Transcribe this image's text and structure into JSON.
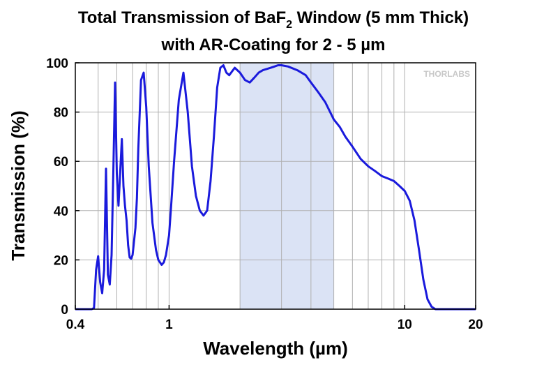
{
  "chart_data": {
    "type": "line",
    "title_line1_prefix": "Total Transmission of BaF",
    "title_line1_subscript": "2",
    "title_line1_suffix": " Window (5 mm Thick)",
    "title_line2": "with AR-Coating for 2 - 5 µm",
    "xlabel": "Wavelength (µm)",
    "ylabel": "Transmission (%)",
    "x_scale": "log",
    "xlim": [
      0.4,
      20
    ],
    "ylim": [
      0,
      100
    ],
    "x_ticks": [
      {
        "value": 0.4,
        "label": "0.4"
      },
      {
        "value": 1,
        "label": "1"
      },
      {
        "value": 10,
        "label": "10"
      },
      {
        "value": 20,
        "label": "20"
      }
    ],
    "y_ticks": [
      {
        "value": 0,
        "label": "0"
      },
      {
        "value": 20,
        "label": "20"
      },
      {
        "value": 40,
        "label": "40"
      },
      {
        "value": 60,
        "label": "60"
      },
      {
        "value": 80,
        "label": "80"
      },
      {
        "value": 100,
        "label": "100"
      }
    ],
    "grid": true,
    "shaded_region": {
      "x_start": 2,
      "x_end": 5,
      "color": "#dbe3f5"
    },
    "watermark": "THORLABS",
    "line_color": "#1a1adc",
    "series": [
      {
        "x": [
          0.4,
          0.45,
          0.47,
          0.48,
          0.49,
          0.5,
          0.51,
          0.52,
          0.53,
          0.54,
          0.55,
          0.56,
          0.57,
          0.58,
          0.59,
          0.6,
          0.61,
          0.63,
          0.64,
          0.65,
          0.66,
          0.67,
          0.68,
          0.69,
          0.7,
          0.72,
          0.73,
          0.74,
          0.76,
          0.78,
          0.8,
          0.82,
          0.85,
          0.88,
          0.9,
          0.93,
          0.95,
          0.97,
          1.0,
          1.02,
          1.05,
          1.1,
          1.15,
          1.2,
          1.25,
          1.3,
          1.35,
          1.4,
          1.45,
          1.5,
          1.55,
          1.6,
          1.65,
          1.7,
          1.75,
          1.8,
          1.9,
          2.0,
          2.1,
          2.2,
          2.3,
          2.4,
          2.5,
          2.6,
          2.7,
          2.8,
          2.9,
          3.0,
          3.2,
          3.5,
          3.8,
          4.0,
          4.3,
          4.6,
          5.0,
          5.3,
          5.6,
          6.0,
          6.5,
          7.0,
          7.5,
          8.0,
          8.5,
          9.0,
          9.5,
          10.0,
          10.5,
          11.0,
          11.5,
          12.0,
          12.5,
          13.0,
          13.5,
          14.0,
          14.5,
          15.0,
          15.5,
          16.0,
          17.0,
          18.0,
          20.0
        ],
        "y": [
          0,
          0,
          0,
          0.5,
          16,
          21.5,
          11,
          6.5,
          16,
          57,
          14,
          10,
          22,
          56,
          92,
          55,
          42,
          69,
          50,
          42,
          36,
          26,
          21,
          20.5,
          22,
          33,
          45,
          65,
          93,
          96,
          82,
          58,
          35,
          24,
          20,
          18,
          19,
          22,
          30,
          42,
          60,
          85,
          96,
          80,
          58,
          46,
          40,
          38,
          40,
          52,
          70,
          90,
          98,
          99,
          96,
          95,
          98,
          96,
          93,
          92,
          94,
          96,
          97,
          97.5,
          98,
          98.5,
          99,
          99,
          98.5,
          97,
          95,
          92,
          88,
          84,
          77,
          74,
          70,
          66,
          61,
          58,
          56,
          54,
          53,
          52,
          50,
          48,
          44,
          36,
          24,
          12,
          4,
          1,
          0,
          0,
          0,
          0,
          0,
          0,
          0,
          0,
          0
        ]
      }
    ]
  }
}
